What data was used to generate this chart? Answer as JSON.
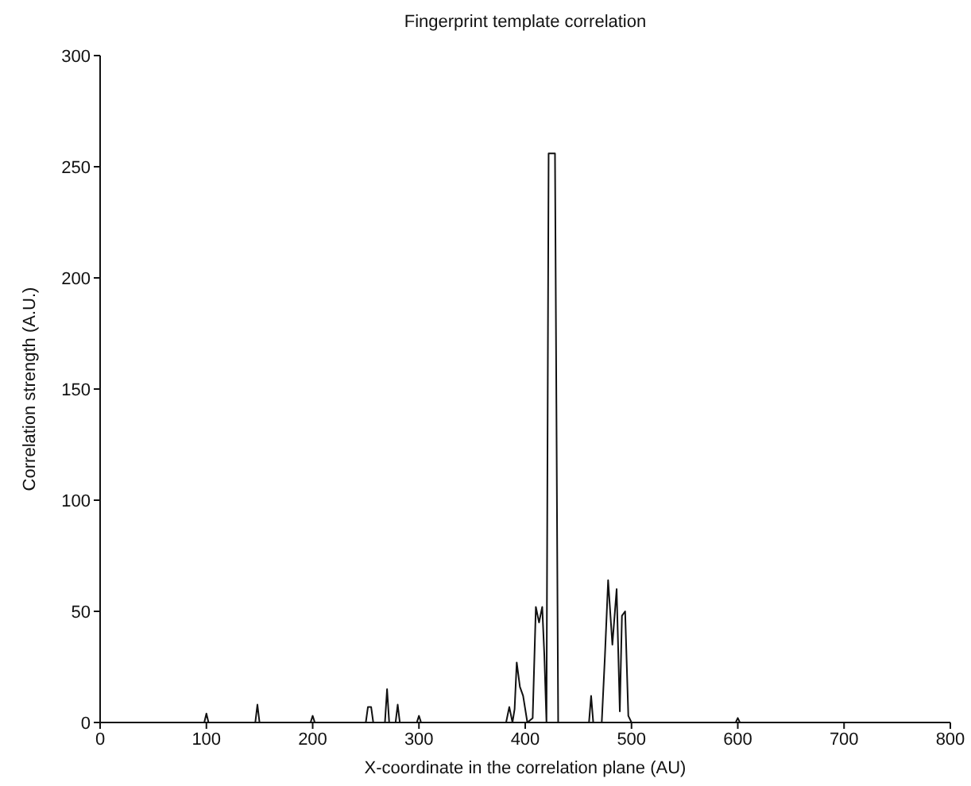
{
  "chart_data": {
    "type": "line",
    "title": "Fingerprint template correlation",
    "xlabel": "X-coordinate in the correlation plane (AU)",
    "ylabel": "Correlation strength (A.U.)",
    "x": [
      0,
      98,
      100,
      102,
      146,
      148,
      150,
      198,
      200,
      202,
      250,
      252,
      255,
      257,
      268,
      270,
      272,
      278,
      280,
      282,
      298,
      300,
      302,
      382,
      385,
      388,
      390,
      392,
      395,
      398,
      402,
      407,
      410,
      413,
      416,
      418,
      420,
      422,
      428,
      431,
      458,
      460,
      462,
      464,
      472,
      475,
      478,
      482,
      486,
      489,
      491,
      494,
      497,
      500,
      502,
      598,
      600,
      602,
      800
    ],
    "series": [
      {
        "color": "#111111",
        "values": [
          0,
          0,
          4,
          0,
          0,
          8,
          0,
          0,
          3,
          0,
          0,
          7,
          7,
          0,
          0,
          15,
          0,
          0,
          8,
          0,
          0,
          3,
          0,
          0,
          7,
          0,
          6,
          27,
          16,
          12,
          0,
          2,
          52,
          45,
          52,
          30,
          0,
          256,
          256,
          0,
          0,
          0,
          12,
          0,
          0,
          30,
          64,
          35,
          60,
          5,
          48,
          50,
          3,
          0,
          0,
          0,
          2,
          0,
          0
        ]
      }
    ],
    "xlim": [
      0,
      800
    ],
    "ylim": [
      0,
      300
    ],
    "xticks": [
      0,
      100,
      200,
      300,
      400,
      500,
      600,
      700,
      800
    ],
    "yticks": [
      0,
      50,
      100,
      150,
      200,
      250,
      300
    ],
    "grid": false,
    "legend": false,
    "marker": "none",
    "line_style": "solid"
  }
}
